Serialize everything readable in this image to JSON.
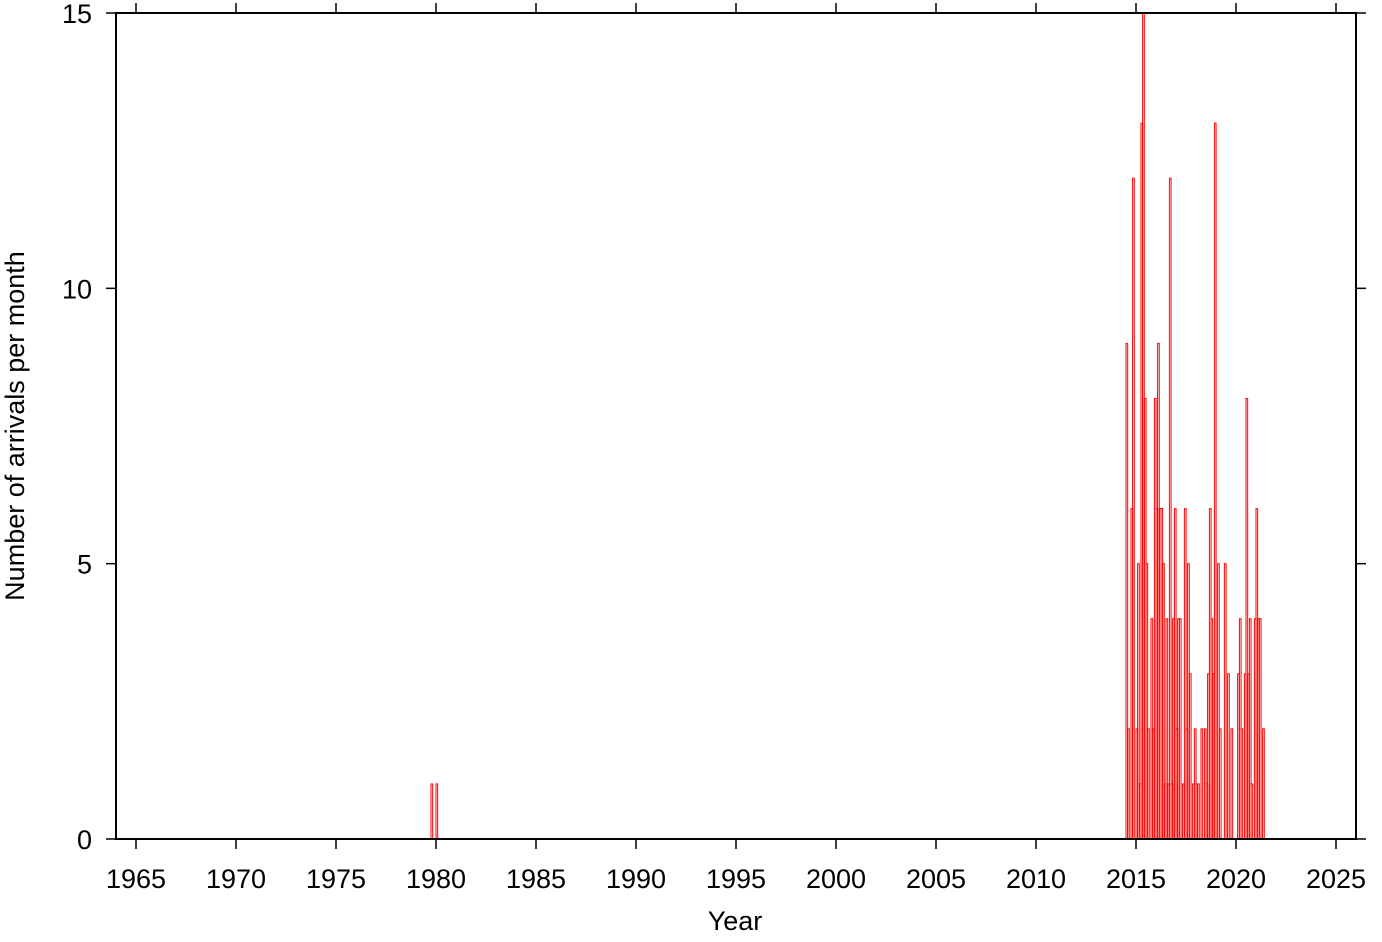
{
  "chart_data": {
    "type": "bar",
    "xlabel": "Year",
    "ylabel": "Number of arrivals per month",
    "color": "#ff0000",
    "x": [
      1979.75,
      1980.0,
      2014.5,
      2014.58,
      2014.75,
      2014.83,
      2015.0,
      2015.08,
      2015.17,
      2015.25,
      2015.33,
      2015.42,
      2015.5,
      2015.58,
      2015.75,
      2015.83,
      2015.92,
      2016.0,
      2016.08,
      2016.17,
      2016.25,
      2016.33,
      2016.42,
      2016.5,
      2016.58,
      2016.67,
      2016.75,
      2016.83,
      2016.92,
      2017.0,
      2017.08,
      2017.17,
      2017.33,
      2017.42,
      2017.5,
      2017.58,
      2017.67,
      2017.83,
      2017.92,
      2018.0,
      2018.08,
      2018.25,
      2018.42,
      2018.5,
      2018.58,
      2018.67,
      2018.75,
      2018.83,
      2018.92,
      2019.08,
      2019.17,
      2019.42,
      2019.58,
      2019.75,
      2020.08,
      2020.17,
      2020.25,
      2020.42,
      2020.5,
      2020.58,
      2020.67,
      2020.75,
      2020.92,
      2021.0,
      2021.08,
      2021.17,
      2021.33
    ],
    "values": [
      1,
      1,
      9,
      2,
      6,
      12,
      2,
      5,
      1,
      13,
      15,
      8,
      5,
      2,
      4,
      2,
      8,
      6,
      9,
      6,
      6,
      5,
      1,
      4,
      1,
      12,
      1,
      4,
      6,
      2,
      4,
      4,
      1,
      6,
      2,
      5,
      3,
      1,
      2,
      1,
      1,
      2,
      2,
      1,
      3,
      6,
      4,
      3,
      13,
      5,
      2,
      5,
      3,
      2,
      3,
      4,
      2,
      3,
      8,
      3,
      4,
      1,
      4,
      6,
      4,
      4,
      2
    ],
    "xlim": [
      1964,
      2026
    ],
    "ylim": [
      0,
      15
    ],
    "xticks": [
      1965,
      1970,
      1975,
      1980,
      1985,
      1990,
      1995,
      2000,
      2005,
      2010,
      2015,
      2020,
      2025
    ],
    "yticks": [
      0,
      5,
      10,
      15
    ]
  }
}
